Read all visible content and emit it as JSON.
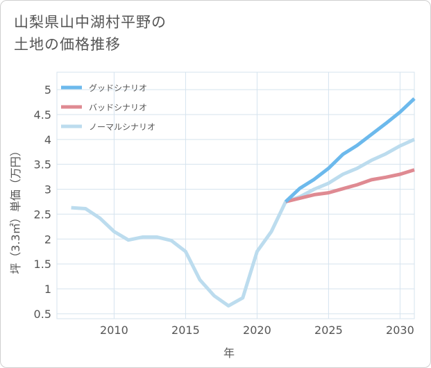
{
  "title_lines": [
    "山梨県山中湖村平野の",
    "土地の価格推移"
  ],
  "chart_data": {
    "type": "line",
    "xlabel": "年",
    "ylabel": "坪（3.3㎡）単価（万円）",
    "xlim": [
      2006,
      2031
    ],
    "ylim": [
      0.4,
      5.35
    ],
    "x_ticks": [
      2010,
      2015,
      2020,
      2025,
      2030
    ],
    "y_ticks": [
      0.5,
      1,
      1.5,
      2,
      2.5,
      3,
      3.5,
      4,
      4.5,
      5
    ],
    "y_tick_labels": [
      "0.5",
      "1",
      "1.5",
      "2",
      "2.5",
      "3",
      "3.5",
      "4",
      "4.5",
      "5"
    ],
    "grid": true,
    "legend_position": "top-left",
    "series": [
      {
        "name": "グッドシナリオ",
        "color": "#6cb9ec",
        "x": [
          2022,
          2023,
          2024,
          2025,
          2026,
          2027,
          2028,
          2029,
          2030,
          2031
        ],
        "y": [
          2.75,
          3.02,
          3.2,
          3.42,
          3.7,
          3.88,
          4.1,
          4.32,
          4.55,
          4.82
        ]
      },
      {
        "name": "バッドシナリオ",
        "color": "#df8a92",
        "x": [
          2022,
          2023,
          2024,
          2025,
          2026,
          2027,
          2028,
          2029,
          2030,
          2031
        ],
        "y": [
          2.75,
          2.82,
          2.89,
          2.93,
          3.01,
          3.09,
          3.19,
          3.24,
          3.3,
          3.39
        ]
      },
      {
        "name": "ノーマルシナリオ",
        "color": "#bcdcee",
        "x": [
          2007,
          2008,
          2009,
          2010,
          2011,
          2012,
          2013,
          2014,
          2015,
          2016,
          2017,
          2018,
          2019,
          2020,
          2021,
          2022,
          2023,
          2024,
          2025,
          2026,
          2027,
          2028,
          2029,
          2030,
          2031
        ],
        "y": [
          2.63,
          2.61,
          2.42,
          2.15,
          1.98,
          2.04,
          2.04,
          1.97,
          1.75,
          1.18,
          0.86,
          0.66,
          0.82,
          1.75,
          2.15,
          2.75,
          2.85,
          3.0,
          3.12,
          3.3,
          3.42,
          3.58,
          3.71,
          3.87,
          4.0
        ]
      }
    ]
  }
}
